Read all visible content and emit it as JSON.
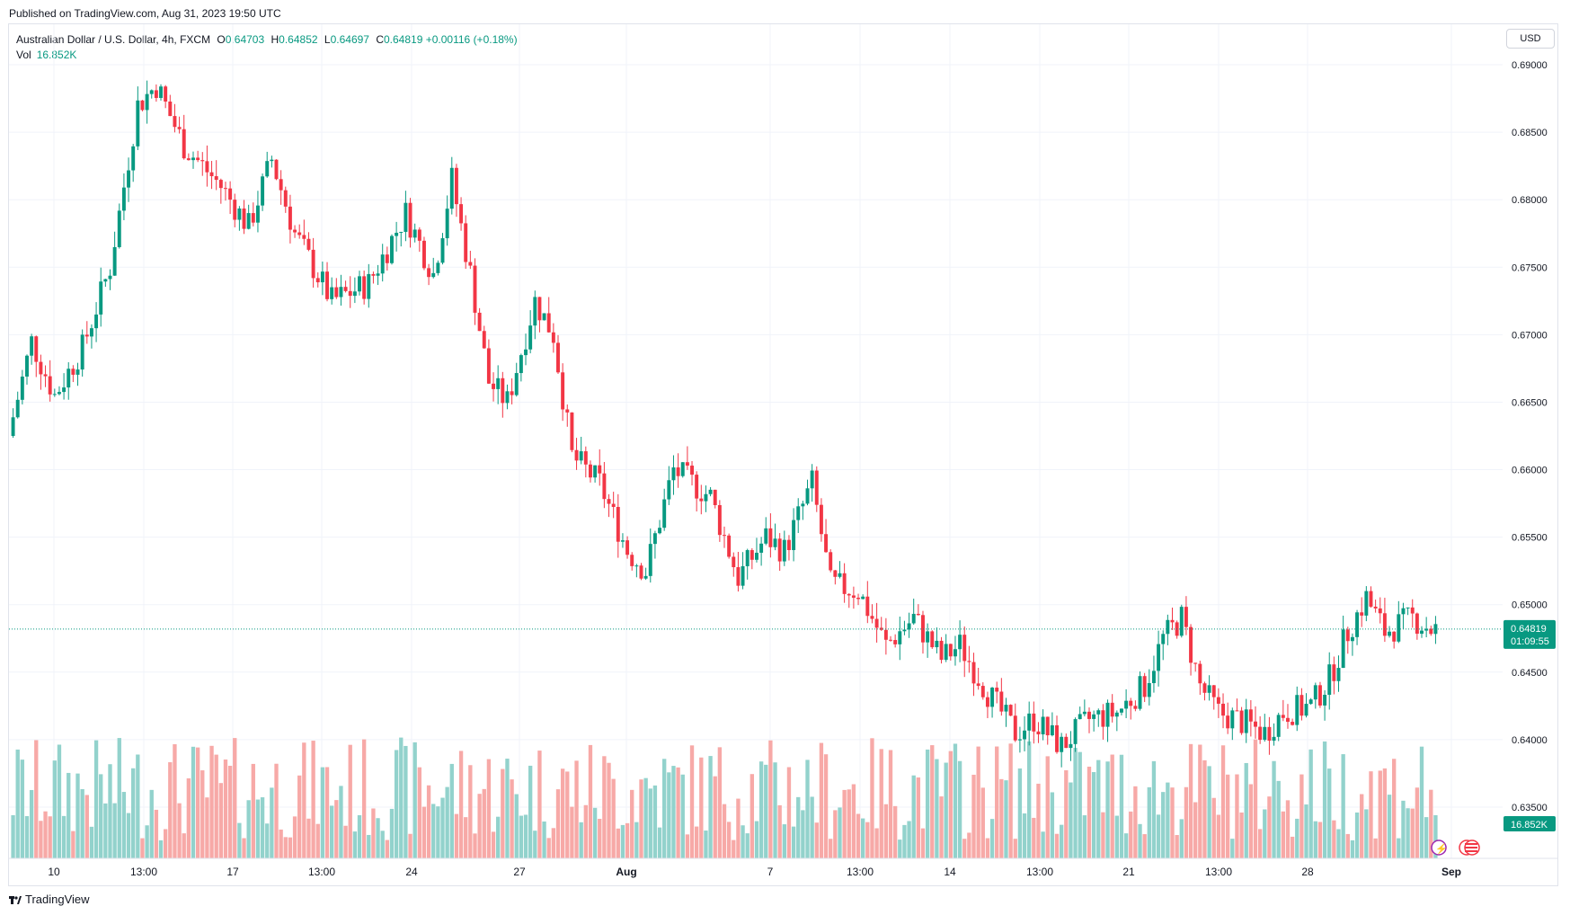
{
  "header": {
    "published": "Published on TradingView.com, Aug 31, 2023 19:50 UTC"
  },
  "legend": {
    "symbol": "Australian Dollar / U.S. Dollar, 4h, FXCM",
    "o_label": "O",
    "o_value": "0.64703",
    "h_label": "H",
    "h_value": "0.64852",
    "l_label": "L",
    "l_value": "0.64697",
    "c_label": "C",
    "c_value": "0.64819",
    "change": "+0.00116 (+0.18%)",
    "vol_label": "Vol",
    "vol_value": "16.852K"
  },
  "currency": "USD",
  "price_label": {
    "value": "0.64819",
    "countdown": "01:09:55"
  },
  "volume_label": "16.852K",
  "footer": {
    "brand": "TradingView"
  },
  "colors": {
    "up": "#089981",
    "down": "#f23645",
    "up_vol": "#92d2cc",
    "down_vol": "#f7a9a7",
    "grid": "#f0f3fa"
  },
  "chart_data": {
    "type": "candlestick",
    "title": "Australian Dollar / U.S. Dollar, 4h, FXCM",
    "y_ticks": [
      "0.69000",
      "0.68500",
      "0.68000",
      "0.67500",
      "0.67000",
      "0.66500",
      "0.66000",
      "0.65500",
      "0.65000",
      "0.64500",
      "0.64000",
      "0.63500"
    ],
    "ylim": [
      0.6312,
      0.693
    ],
    "x_ticks": [
      "10",
      "13:00",
      "17",
      "13:00",
      "24",
      "27",
      "Aug",
      "7",
      "13:00",
      "14",
      "13:00",
      "21",
      "13:00",
      "28",
      "Sep"
    ],
    "last_close": 0.64819,
    "grid": true,
    "key_points": [
      {
        "label": "start",
        "close": 0.6625
      },
      {
        "label": "Jul 13 peak",
        "high": 0.6895
      },
      {
        "label": "Jul 27 high",
        "high": 0.6821
      },
      {
        "label": "Aug 17 low",
        "low": 0.6365
      },
      {
        "label": "Aug 30 high",
        "high": 0.6522
      },
      {
        "label": "last",
        "close": 0.64819
      }
    ]
  }
}
